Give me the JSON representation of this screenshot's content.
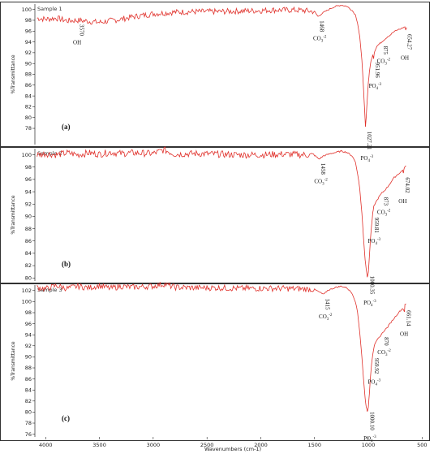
{
  "chart_data": [
    {
      "type": "line",
      "panel_label": "(a)",
      "sample_label": "Sample 1",
      "ylabel": "%Transmittance",
      "xlim": [
        4100,
        450
      ],
      "ylim": [
        75,
        101
      ],
      "yticks": [
        78,
        80,
        82,
        84,
        86,
        88,
        90,
        92,
        94,
        96,
        98,
        100
      ],
      "color": "#e0302a",
      "series": [
        {
          "x": [
            4080,
            4000,
            3900,
            3800,
            3700,
            3600,
            3500,
            3400,
            3300,
            3200,
            3000,
            2800,
            2600,
            2400,
            2200,
            2000,
            1900,
            1800,
            1700,
            1600,
            1500,
            1468,
            1420,
            1350,
            1300,
            1250,
            1200,
            1150,
            1120,
            1100,
            1080,
            1060,
            1045,
            1035,
            1027,
            1020,
            1010,
            1000,
            990,
            980,
            970,
            960,
            951,
            945,
            935,
            920,
            900,
            875,
            860,
            840,
            820,
            800,
            780,
            760,
            740,
            720,
            700,
            680,
            660,
            654,
            650,
            640
          ],
          "y": [
            98.4,
            98.2,
            98.4,
            97.9,
            98.0,
            97.8,
            97.6,
            97.9,
            98.2,
            98.6,
            99.2,
            99.5,
            99.6,
            99.6,
            99.7,
            99.8,
            99.9,
            99.9,
            99.9,
            99.8,
            99.6,
            98.7,
            99.4,
            100.2,
            100.6,
            100.8,
            100.6,
            99.8,
            99.0,
            97.5,
            95.0,
            90.5,
            85.5,
            81.5,
            78.2,
            80.0,
            83.5,
            86.5,
            88.5,
            90.0,
            90.8,
            91.5,
            91.0,
            92.0,
            92.6,
            93.2,
            93.6,
            94.0,
            94.3,
            94.6,
            95.0,
            95.2,
            95.6,
            95.9,
            96.1,
            96.3,
            96.4,
            96.6,
            96.8,
            96.2,
            96.5,
            96.6
          ]
        }
      ],
      "annotations": [
        {
          "x": 3700,
          "number": "3570",
          "label": "OH",
          "sub": "",
          "sup": ""
        },
        {
          "x": 1468,
          "number": "1468",
          "label": "CO",
          "sub": "3",
          "sup": "-2"
        },
        {
          "x": 1027,
          "number": "1027.21",
          "label": "PO",
          "sub": "4",
          "sup": "-3"
        },
        {
          "x": 951,
          "number": "951.96",
          "label": "PO",
          "sub": "4",
          "sup": "-3"
        },
        {
          "x": 875,
          "number": "875",
          "label": "CO",
          "sub": "3",
          "sup": "-2"
        },
        {
          "x": 654,
          "number": "654.27",
          "label": "OH",
          "sub": "",
          "sup": ""
        }
      ]
    },
    {
      "type": "line",
      "panel_label": "(b)",
      "sample_label": "Sample 2",
      "ylabel": "%Transmittance",
      "xlim": [
        4100,
        450
      ],
      "ylim": [
        79.5,
        101
      ],
      "yticks": [
        80,
        82,
        84,
        86,
        88,
        90,
        92,
        94,
        96,
        98,
        100
      ],
      "color": "#e0302a",
      "series": [
        {
          "x": [
            4080,
            4000,
            3900,
            3800,
            3700,
            3600,
            3500,
            3400,
            3300,
            3200,
            3000,
            2900,
            2800,
            2600,
            2400,
            2200,
            2000,
            1800,
            1600,
            1500,
            1458,
            1420,
            1350,
            1300,
            1250,
            1200,
            1150,
            1120,
            1100,
            1080,
            1060,
            1045,
            1030,
            1020,
            1010,
            1000,
            990,
            980,
            970,
            959,
            950,
            940,
            920,
            900,
            873,
            850,
            820,
            800,
            780,
            760,
            740,
            720,
            700,
            680,
            674,
            665,
            650
          ],
          "y": [
            100.0,
            100.2,
            100.0,
            100.3,
            100.0,
            100.3,
            100.1,
            100.4,
            100.2,
            100.3,
            100.2,
            100.8,
            100.1,
            100.2,
            100.1,
            100.0,
            100.0,
            100.1,
            100.0,
            99.9,
            99.3,
            99.8,
            100.2,
            100.4,
            100.6,
            100.4,
            99.8,
            98.8,
            97.0,
            94.5,
            90.5,
            86.5,
            83.0,
            81.5,
            80.2,
            81.0,
            83.5,
            86.5,
            88.5,
            90.5,
            91.5,
            92.0,
            92.6,
            93.2,
            93.8,
            94.2,
            94.8,
            95.3,
            95.8,
            96.3,
            96.6,
            96.9,
            97.2,
            97.5,
            97.0,
            98.0,
            98.2
          ]
        }
      ],
      "annotations": [
        {
          "x": 1458,
          "number": "1458",
          "label": "CO",
          "sub": "3",
          "sup": "-2"
        },
        {
          "x": 1000,
          "number": "1000.35",
          "label": "PO",
          "sub": "4",
          "sup": "-3"
        },
        {
          "x": 959,
          "number": "959.81",
          "label": "PO",
          "sub": "4",
          "sup": "-3"
        },
        {
          "x": 873,
          "number": "873",
          "label": "CO",
          "sub": "3",
          "sup": "-2"
        },
        {
          "x": 674,
          "number": "674.02",
          "label": "OH",
          "sub": "",
          "sup": ""
        }
      ]
    },
    {
      "type": "line",
      "panel_label": "(c)",
      "sample_label": "Sample 3",
      "ylabel": "%Transmittance",
      "xlabel": "Wavenumbers (cm-1)",
      "xlim": [
        4100,
        450
      ],
      "ylim": [
        75.5,
        103
      ],
      "yticks": [
        76,
        78,
        80,
        82,
        84,
        86,
        88,
        90,
        92,
        94,
        96,
        98,
        100,
        102
      ],
      "xticks": [
        4000,
        3500,
        3000,
        2500,
        2000,
        1500,
        1000,
        500
      ],
      "color": "#e0302a",
      "series": [
        {
          "x": [
            4080,
            4000,
            3900,
            3800,
            3700,
            3600,
            3500,
            3400,
            3300,
            3200,
            3100,
            3000,
            2900,
            2800,
            2600,
            2400,
            2200,
            2000,
            1800,
            1600,
            1500,
            1415,
            1380,
            1330,
            1300,
            1250,
            1200,
            1150,
            1120,
            1100,
            1080,
            1060,
            1045,
            1030,
            1020,
            1010,
            1000,
            990,
            980,
            970,
            959,
            950,
            940,
            920,
            900,
            870,
            850,
            820,
            800,
            780,
            760,
            740,
            720,
            700,
            680,
            665,
            660,
            650
          ],
          "y": [
            102.6,
            102.3,
            102.9,
            102.4,
            102.8,
            102.5,
            102.9,
            102.4,
            102.8,
            102.6,
            102.7,
            102.8,
            103.2,
            102.6,
            102.5,
            102.5,
            102.4,
            102.4,
            102.4,
            102.3,
            102.2,
            101.3,
            102.0,
            102.4,
            102.6,
            102.8,
            102.5,
            101.5,
            100.0,
            98.0,
            94.5,
            90.0,
            86.0,
            82.5,
            81.0,
            80.2,
            80.8,
            83.5,
            86.5,
            88.8,
            90.5,
            91.5,
            92.2,
            93.0,
            93.5,
            94.3,
            94.8,
            95.4,
            96.0,
            96.5,
            97.0,
            97.5,
            98.0,
            98.4,
            98.8,
            98.2,
            99.4,
            99.6
          ]
        }
      ],
      "annotations": [
        {
          "x": 1415,
          "number": "1415",
          "label": "CO",
          "sub": "3",
          "sup": "-2"
        },
        {
          "x": 1000,
          "number": "1000.10",
          "label": "PO",
          "sub": "4",
          "sup": "-3"
        },
        {
          "x": 959,
          "number": "959.92",
          "label": "PO",
          "sub": "4",
          "sup": "-3"
        },
        {
          "x": 870,
          "number": "870",
          "label": "CO",
          "sub": "3",
          "sup": "-2"
        },
        {
          "x": 661,
          "number": "661.14",
          "label": "OH",
          "sub": "",
          "sup": ""
        }
      ]
    }
  ]
}
